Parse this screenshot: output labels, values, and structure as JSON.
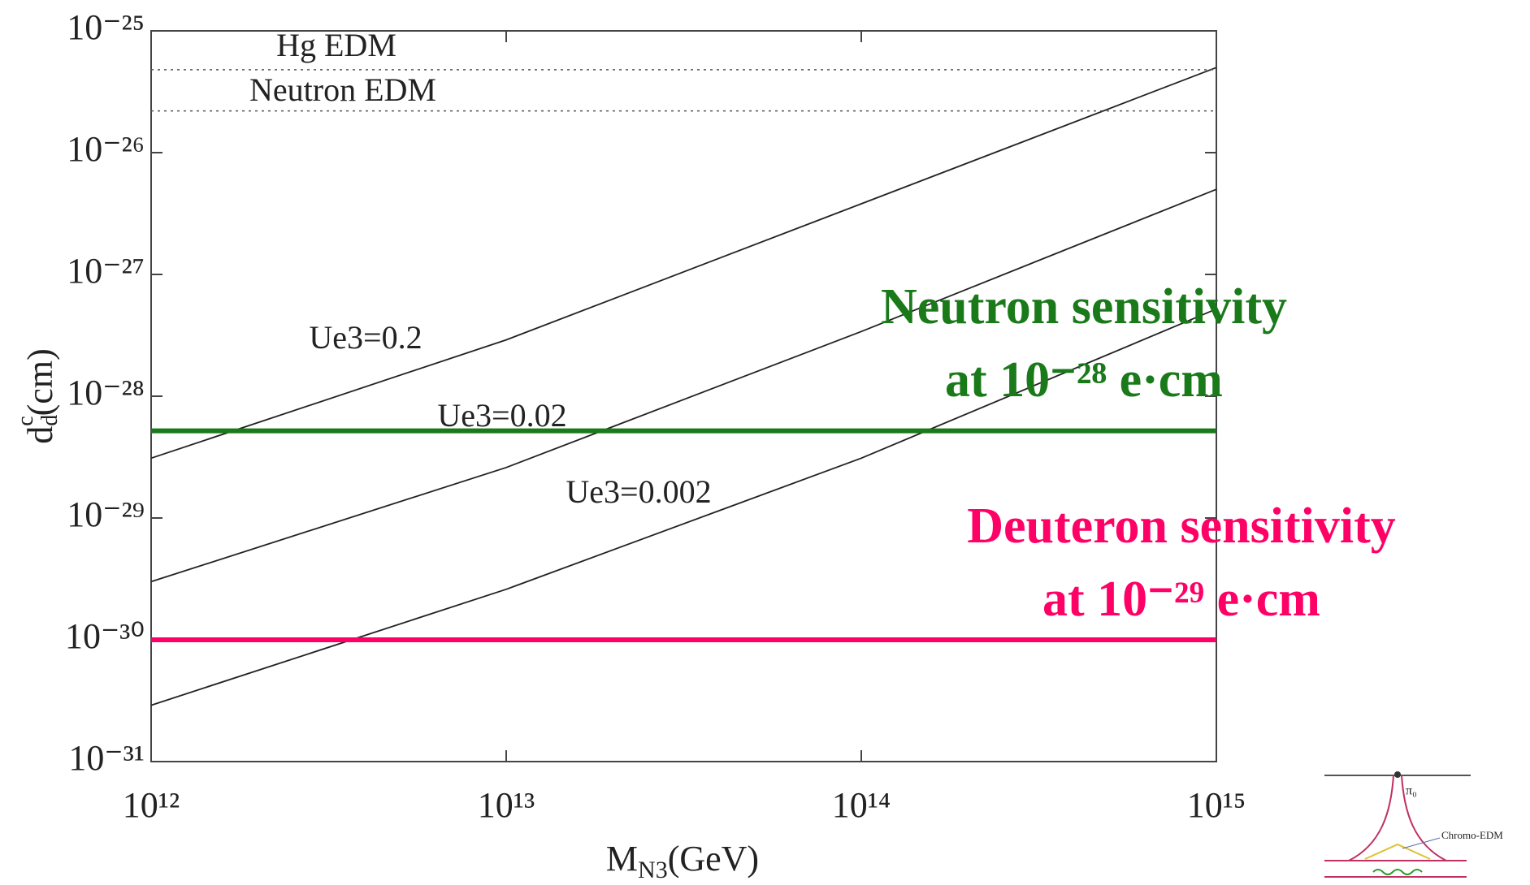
{
  "chart_data": {
    "type": "line",
    "x_label": {
      "text": "M",
      "sub": "N3",
      "tail": "(GeV)"
    },
    "y_label": {
      "text": "d",
      "sub": "d",
      "sup": "c",
      "tail": "(cm)"
    },
    "log_x": true,
    "log_y": true,
    "xlim": [
      1000000000000.0,
      1000000000000000.0
    ],
    "xticks": [
      {
        "value": 1000000000000.0,
        "label": "10¹²"
      },
      {
        "value": 10000000000000.0,
        "label": "10¹³"
      },
      {
        "value": 100000000000000.0,
        "label": "10¹⁴"
      },
      {
        "value": 1000000000000000.0,
        "label": "10¹⁵"
      }
    ],
    "ylim": [
      1e-31,
      1e-25
    ],
    "yticks": [
      {
        "value": 1e-31,
        "label": "10⁻³¹"
      },
      {
        "value": 1e-30,
        "label": "10⁻³⁰"
      },
      {
        "value": 1e-29,
        "label": "10⁻²⁹"
      },
      {
        "value": 1e-28,
        "label": "10⁻²⁸"
      },
      {
        "value": 1e-27,
        "label": "10⁻²⁷"
      },
      {
        "value": 1e-26,
        "label": "10⁻²⁶"
      },
      {
        "value": 1e-25,
        "label": "10⁻²⁵"
      }
    ],
    "x": [
      1000000000000.0,
      10000000000000.0,
      100000000000000.0,
      1000000000000000.0
    ],
    "series": [
      {
        "name": "Ue3=0.2",
        "color": "#222222",
        "values": [
          3.1e-29,
          2.9e-28,
          3.8e-27,
          5e-26
        ]
      },
      {
        "name": "Ue3=0.02",
        "color": "#222222",
        "values": [
          3e-30,
          2.6e-29,
          3.4e-28,
          5e-27
        ]
      },
      {
        "name": "Ue3=0.002",
        "color": "#222222",
        "values": [
          2.9e-31,
          2.6e-30,
          3.1e-29,
          5.2e-28
        ]
      }
    ],
    "reference_lines": [
      {
        "labels": [
          "Hg EDM"
        ],
        "value": 4.8e-26,
        "color": "#555555",
        "style": "dotted"
      },
      {
        "labels": [
          "Neutron EDM"
        ],
        "value": 2.2e-26,
        "color": "#555555",
        "style": "dotted"
      },
      {
        "labels": [
          "Neutron sensitivity",
          "at 10⁻²⁸ e·cm"
        ],
        "value": 5.2e-29,
        "color": "#1a7a1a",
        "style": "solid"
      },
      {
        "labels": [
          "Deuteron sensitivity",
          "at 10⁻²⁹ e·cm"
        ],
        "value": 1e-30,
        "color": "#ff0066",
        "style": "solid"
      }
    ]
  },
  "inset": {
    "labels": [
      "π₀",
      "Chromo-EDM"
    ]
  }
}
